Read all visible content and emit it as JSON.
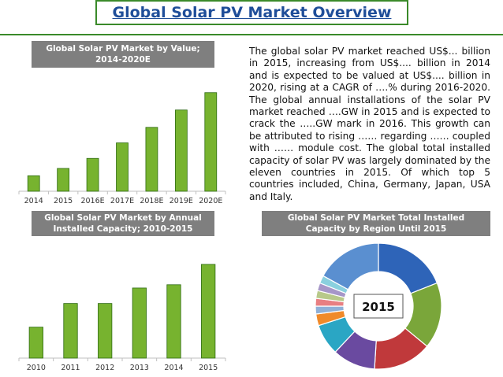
{
  "page": {
    "title": "Global Solar PV Market Overview",
    "description": "The global solar PV market reached US$... billion in 2015, increasing from US$.... billion in 2014 and is expected to be valued at US$.... billion in 2020, rising at a CAGR of ….% during 2016-2020. The global annual installations of the solar PV market reached ….GW in 2015 and is expected to crack the …..GW mark in 2016. This growth can be attributed to rising …… regarding …… coupled with …… module cost. The global total installed capacity of solar PV was largely dominated by the eleven countries in 2015. Of which top 5 countries included, China, Germany, Japan, USA and Italy."
  },
  "colors": {
    "accent_green": "#3a8a2a",
    "bar_green": "#77b32f",
    "title_blue": "#1f4e99",
    "panel_grey": "#7f7f7f"
  },
  "chart_data": [
    {
      "id": "value",
      "type": "bar",
      "title_lines": [
        "Global Solar PV Market by Value;",
        "2014-2020E"
      ],
      "categories": [
        "2014",
        "2015",
        "2016E",
        "2017E",
        "2018E",
        "2019E",
        "2020E"
      ],
      "values": [
        17,
        25,
        36,
        53,
        70,
        89,
        108
      ],
      "ylim": [
        0,
        125
      ],
      "xlabel": "",
      "ylabel": "",
      "grid": false,
      "legend": "none"
    },
    {
      "id": "annual",
      "type": "bar",
      "title_lines": [
        "Global Solar PV Market by Annual",
        "Installed Capacity; 2010-2015"
      ],
      "categories": [
        "2010",
        "2011",
        "2012",
        "2013",
        "2014",
        "2015"
      ],
      "values": [
        38,
        67,
        67,
        86,
        90,
        115
      ],
      "ylim": [
        0,
        140
      ],
      "xlabel": "",
      "ylabel": "",
      "grid": false,
      "legend": "none"
    },
    {
      "id": "region",
      "type": "pie",
      "title_lines": [
        "Global Solar PV Market Total Installed",
        "Capacity by Region Until 2015"
      ],
      "center_label": "2015",
      "values": [
        19,
        17,
        15,
        11,
        8,
        3,
        2,
        2,
        2,
        2,
        2,
        17
      ],
      "colors": [
        "#2e64b8",
        "#7aa63a",
        "#c0393b",
        "#6a4aa0",
        "#2aa6c4",
        "#f08a2a",
        "#8fb0d8",
        "#e87f82",
        "#b8c98a",
        "#a696c8",
        "#8ad0de",
        "#5a8fd0"
      ],
      "legend": "none"
    }
  ]
}
